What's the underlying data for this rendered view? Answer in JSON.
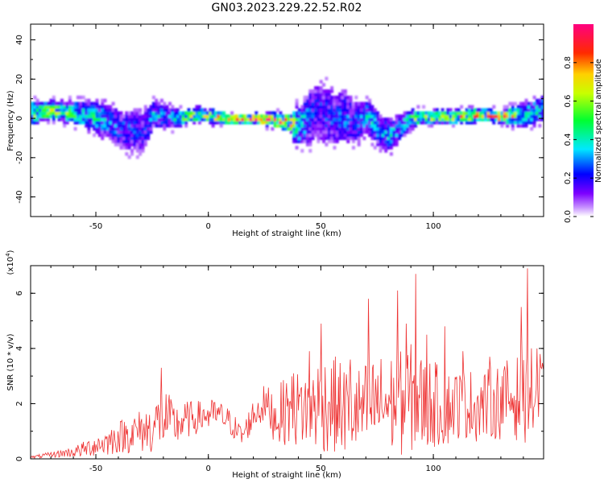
{
  "title": "GN03.2023.229.22.52.R02",
  "colors": {
    "snr_line": "#ee3333"
  },
  "chart_data": [
    {
      "type": "heatmap",
      "title": "GN03.2023.229.22.52.R02",
      "xlabel": "Height of straight line (km)",
      "ylabel": "Frequency (Hz)",
      "xlim": [
        -79,
        149
      ],
      "ylim": [
        -50,
        48
      ],
      "x_ticks": [
        -50,
        0,
        50,
        100
      ],
      "y_ticks": [
        -40,
        -20,
        0,
        20,
        40
      ],
      "colorbar": {
        "label": "Normalized spectral amplitude",
        "range": [
          0,
          1
        ],
        "ticks": [
          0.0,
          0.2,
          0.4,
          0.6,
          0.8
        ],
        "tick_labels": [
          "0.0",
          "0.2",
          "0.4",
          "0.6",
          "0.8"
        ],
        "colormap": "rainbow (white-violet-blue-cyan-green-yellow-red-magenta)"
      },
      "ridge": {
        "description": "peak spectral amplitude near 0 Hz along height",
        "x": [
          -78,
          -70,
          -60,
          -50,
          -45,
          -40,
          -35,
          -30,
          -25,
          -20,
          -15,
          -10,
          -5,
          0,
          10,
          20,
          30,
          35,
          40,
          45,
          50,
          55,
          60,
          65,
          70,
          75,
          80,
          85,
          90,
          100,
          110,
          120,
          130,
          140,
          148
        ],
        "frequency": [
          3,
          4,
          3,
          1,
          -2,
          -5,
          -6,
          -7,
          2,
          1,
          0,
          1,
          2,
          1,
          0,
          0,
          -1,
          -2,
          -4,
          2,
          3,
          0,
          1,
          -2,
          1,
          -5,
          -9,
          -4,
          0,
          1,
          1,
          2,
          1,
          2,
          5
        ],
        "amplitude": [
          0.55,
          0.6,
          0.5,
          0.4,
          0.3,
          0.25,
          0.25,
          0.2,
          0.35,
          0.3,
          0.4,
          0.55,
          0.65,
          0.8,
          0.92,
          0.95,
          0.9,
          0.75,
          0.4,
          0.25,
          0.25,
          0.25,
          0.3,
          0.25,
          0.35,
          0.3,
          0.35,
          0.3,
          0.5,
          0.6,
          0.7,
          0.75,
          0.8,
          0.45,
          0.4
        ],
        "spread_hz": [
          5,
          4,
          5,
          7,
          8,
          9,
          10,
          10,
          6,
          6,
          4,
          3,
          3,
          3,
          2,
          2,
          3,
          4,
          9,
          13,
          14,
          12,
          12,
          10,
          8,
          8,
          7,
          6,
          4,
          3,
          3,
          3,
          3,
          5,
          6
        ]
      }
    },
    {
      "type": "line",
      "xlabel": "Height of straight line (km)",
      "ylabel": "SNR (10 * v/v)",
      "y_scale_label": "(x10",
      "y_scale_exp": "4",
      "y_scale_close": ")",
      "xlim": [
        -79,
        149
      ],
      "ylim": [
        0,
        7
      ],
      "x_ticks": [
        -50,
        0,
        50,
        100
      ],
      "y_ticks": [
        0,
        2,
        4,
        6
      ],
      "series": [
        {
          "envelope_x": [
            -79,
            -70,
            -60,
            -55,
            -50,
            -45,
            -40,
            -35,
            -30,
            -25,
            -22,
            -20,
            -15,
            -10,
            -5,
            0,
            5,
            10,
            15,
            20,
            25,
            30,
            35,
            40,
            45,
            50,
            55,
            60,
            65,
            70,
            75,
            80,
            85,
            90,
            95,
            100,
            105,
            110,
            115,
            120,
            125,
            130,
            135,
            140,
            145,
            149
          ],
          "mean": [
            0.05,
            0.15,
            0.25,
            0.35,
            0.5,
            0.6,
            0.8,
            0.9,
            1.0,
            1.1,
            1.4,
            1.5,
            1.2,
            1.4,
            1.5,
            1.6,
            1.6,
            1.3,
            0.8,
            1.6,
            2.0,
            1.5,
            1.8,
            1.8,
            1.9,
            2.0,
            2.0,
            1.8,
            1.7,
            1.8,
            2.0,
            2.0,
            2.0,
            2.2,
            2.0,
            2.0,
            1.8,
            2.0,
            2.0,
            1.9,
            2.0,
            2.1,
            2.2,
            2.2,
            2.3,
            2.2
          ],
          "spread": [
            0.05,
            0.1,
            0.2,
            0.3,
            0.4,
            0.5,
            0.6,
            0.7,
            0.8,
            0.9,
            1.0,
            1.2,
            0.8,
            0.7,
            0.6,
            0.6,
            0.5,
            0.5,
            0.4,
            0.6,
            0.7,
            1.0,
            1.3,
            1.4,
            1.6,
            1.8,
            1.8,
            1.7,
            1.6,
            1.7,
            1.8,
            1.8,
            1.9,
            2.0,
            1.8,
            1.6,
            1.4,
            1.3,
            1.3,
            1.3,
            1.3,
            1.4,
            1.5,
            1.6,
            1.8,
            1.8
          ],
          "spikes_x": [
            -21,
            38,
            45,
            50,
            63,
            71,
            84,
            88,
            92,
            97,
            105,
            113,
            125,
            139,
            142,
            146
          ],
          "spikes_y": [
            3.3,
            3.1,
            3.9,
            4.9,
            3.6,
            5.8,
            6.1,
            4.9,
            6.7,
            4.5,
            4.8,
            3.9,
            3.7,
            5.5,
            6.9,
            4.0
          ]
        }
      ]
    }
  ]
}
